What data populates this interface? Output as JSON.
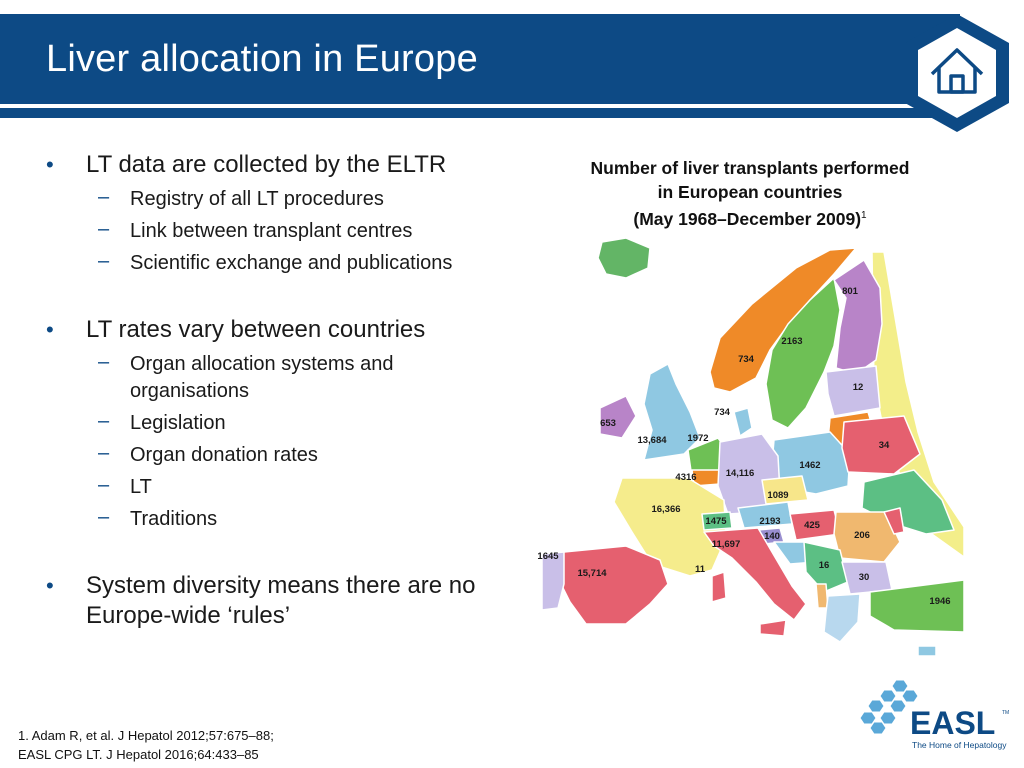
{
  "slide": {
    "title": "Liver allocation in Europe"
  },
  "bullets": [
    {
      "text": "LT data are collected by the ELTR",
      "sub": [
        "Registry of all LT procedures",
        "Link between transplant centres",
        "Scientific exchange and publications"
      ]
    },
    {
      "text": "LT rates vary between countries",
      "sub": [
        "Organ allocation systems and organisations",
        "Legislation",
        "Organ donation rates",
        "LT",
        "Traditions"
      ]
    },
    {
      "text": "System diversity means there are no Europe-wide ‘rules’",
      "sub": []
    }
  ],
  "bullet_marker": "•",
  "sub_marker": "–",
  "map": {
    "title_line1": "Number of liver transplants performed",
    "title_line2": "in European countries",
    "title_line3": "(May 1968–December 2009)",
    "title_ref": "1",
    "country_counts": [
      {
        "value": "801"
      },
      {
        "value": "2163"
      },
      {
        "value": "734"
      },
      {
        "value": "12"
      },
      {
        "value": "653"
      },
      {
        "value": "734"
      },
      {
        "value": "13,684"
      },
      {
        "value": "34"
      },
      {
        "value": "1972"
      },
      {
        "value": "1462"
      },
      {
        "value": "14,116"
      },
      {
        "value": "4316"
      },
      {
        "value": "1089"
      },
      {
        "value": "16,366"
      },
      {
        "value": "1475"
      },
      {
        "value": "2193"
      },
      {
        "value": "425"
      },
      {
        "value": "140"
      },
      {
        "value": "206"
      },
      {
        "value": "11,697"
      },
      {
        "value": "1645"
      },
      {
        "value": "15,714"
      },
      {
        "value": "16"
      },
      {
        "value": "11"
      },
      {
        "value": "30"
      },
      {
        "value": "1946"
      }
    ]
  },
  "footnote": {
    "line1": "1. Adam R, et al. J Hepatol 2012;57:675–88;",
    "line2": "EASL CPG LT. J Hepatol 2016;64:433–85"
  },
  "logo": {
    "name": "EASL",
    "tagline": "The Home of Hepatology",
    "tm": "TM"
  },
  "icons": {
    "home": "home-icon"
  },
  "colors": {
    "brand_blue": "#0d4a85",
    "logo_light_blue": "#5aa8d8"
  }
}
